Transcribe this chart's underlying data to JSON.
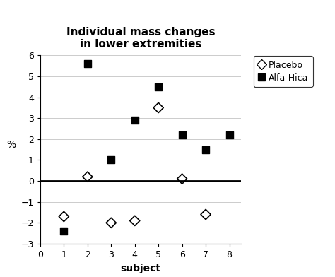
{
  "title": "Individual mass changes\nin lower extremities",
  "xlabel": "subject",
  "ylabel": "%",
  "placebo_x": [
    1,
    2,
    3,
    4,
    5,
    6,
    7
  ],
  "placebo_y": [
    -1.7,
    0.2,
    -2.0,
    -1.9,
    3.5,
    0.1,
    -1.6
  ],
  "alfa_x": [
    1,
    2,
    3,
    4,
    5,
    6,
    7,
    8
  ],
  "alfa_y": [
    -2.4,
    5.6,
    1.0,
    2.9,
    4.5,
    2.2,
    1.5,
    2.2
  ],
  "xlim": [
    0,
    8.5
  ],
  "ylim": [
    -3,
    6
  ],
  "yticks": [
    -3,
    -2,
    -1,
    0,
    1,
    2,
    3,
    4,
    5,
    6
  ],
  "xticks": [
    0,
    1,
    2,
    3,
    4,
    5,
    6,
    7,
    8
  ],
  "legend_placebo": "Placebo",
  "legend_alfa": "Alfa-Hica",
  "bg_color": "#ffffff",
  "grid_color": "#cccccc",
  "marker_size_placebo": 52,
  "marker_size_alfa": 52,
  "hline_y": 0,
  "hline_color": "#000000",
  "hline_lw": 2.0,
  "title_fontsize": 11,
  "axis_fontsize": 10,
  "legend_fontsize": 9
}
